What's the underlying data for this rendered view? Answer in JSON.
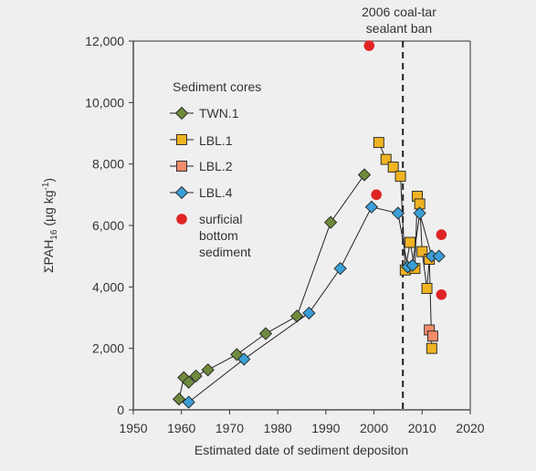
{
  "chart_data": {
    "type": "scatter",
    "xlabel": "Estimated date of sediment depositon",
    "ylabel_main": "ΣPAH",
    "ylabel_sub": "16",
    "ylabel_unit_pre": " (µg kg",
    "ylabel_unit_sup": "-1",
    "ylabel_unit_post": ")",
    "xlim": [
      1950,
      2020
    ],
    "ylim": [
      0,
      12000
    ],
    "x_ticks": [
      1950,
      1960,
      1970,
      1980,
      1990,
      2000,
      2010,
      2020
    ],
    "y_ticks": [
      0,
      2000,
      4000,
      6000,
      8000,
      10000,
      12000
    ],
    "x_tick_labels": [
      "1950",
      "1960",
      "1970",
      "1980",
      "1990",
      "2000",
      "2010",
      "2020"
    ],
    "y_tick_labels": [
      "0",
      "2,000",
      "4,000",
      "6,000",
      "8,000",
      "10,000",
      "12,000"
    ],
    "grid": false,
    "legend_title": "Sediment cores",
    "legend_placement": "top-left",
    "reference_line": {
      "x": 2006,
      "label_line1": "2006 coal-tar",
      "label_line2": "sealant ban",
      "style": "dashed",
      "color": "#222222"
    },
    "series": [
      {
        "name": "TWN.1",
        "marker": "diamond",
        "color": "#6e8b3d",
        "connected": true,
        "points": [
          [
            1959.5,
            350
          ],
          [
            1960.5,
            1050
          ],
          [
            1961.5,
            900
          ],
          [
            1963,
            1100
          ],
          [
            1965.5,
            1300
          ],
          [
            1971.5,
            1800
          ],
          [
            1977.5,
            2480
          ],
          [
            1984,
            3050
          ],
          [
            1991,
            6100
          ],
          [
            1998,
            7650
          ]
        ]
      },
      {
        "name": "LBL.1",
        "marker": "square",
        "color": "#f0b323",
        "connected": true,
        "points": [
          [
            2001,
            8700
          ],
          [
            2002.5,
            8150
          ],
          [
            2004,
            7900
          ],
          [
            2005.5,
            7600
          ],
          [
            2006.5,
            4550
          ],
          [
            2007.5,
            5450
          ],
          [
            2008.5,
            4600
          ],
          [
            2009,
            6950
          ],
          [
            2009.5,
            6700
          ],
          [
            2010,
            5150
          ],
          [
            2011,
            3950
          ],
          [
            2011.5,
            4900
          ],
          [
            2012,
            2000
          ]
        ]
      },
      {
        "name": "LBL.2",
        "marker": "square",
        "color": "#f28c6a",
        "connected": true,
        "points": [
          [
            2011.5,
            2600
          ],
          [
            2012.2,
            2400
          ]
        ]
      },
      {
        "name": "LBL.4",
        "marker": "diamond",
        "color": "#3a9fd6",
        "connected": true,
        "points": [
          [
            1961.5,
            250
          ],
          [
            1973,
            1650
          ],
          [
            1986.5,
            3150
          ],
          [
            1993,
            4600
          ],
          [
            1999.5,
            6600
          ],
          [
            2005,
            6400
          ],
          [
            2007,
            4650
          ],
          [
            2008,
            4700
          ],
          [
            2009.5,
            6400
          ],
          [
            2012,
            5000
          ],
          [
            2013.5,
            5000
          ]
        ]
      },
      {
        "name": "surficial bottom sediment",
        "legend_line1": "surficial",
        "legend_line2": "bottom",
        "legend_line3": "sediment",
        "marker": "circle",
        "color": "#e02424",
        "connected": false,
        "points": [
          [
            1999,
            11850
          ],
          [
            2000.5,
            7000
          ],
          [
            2014,
            5700
          ],
          [
            2014,
            3750
          ]
        ]
      }
    ]
  }
}
